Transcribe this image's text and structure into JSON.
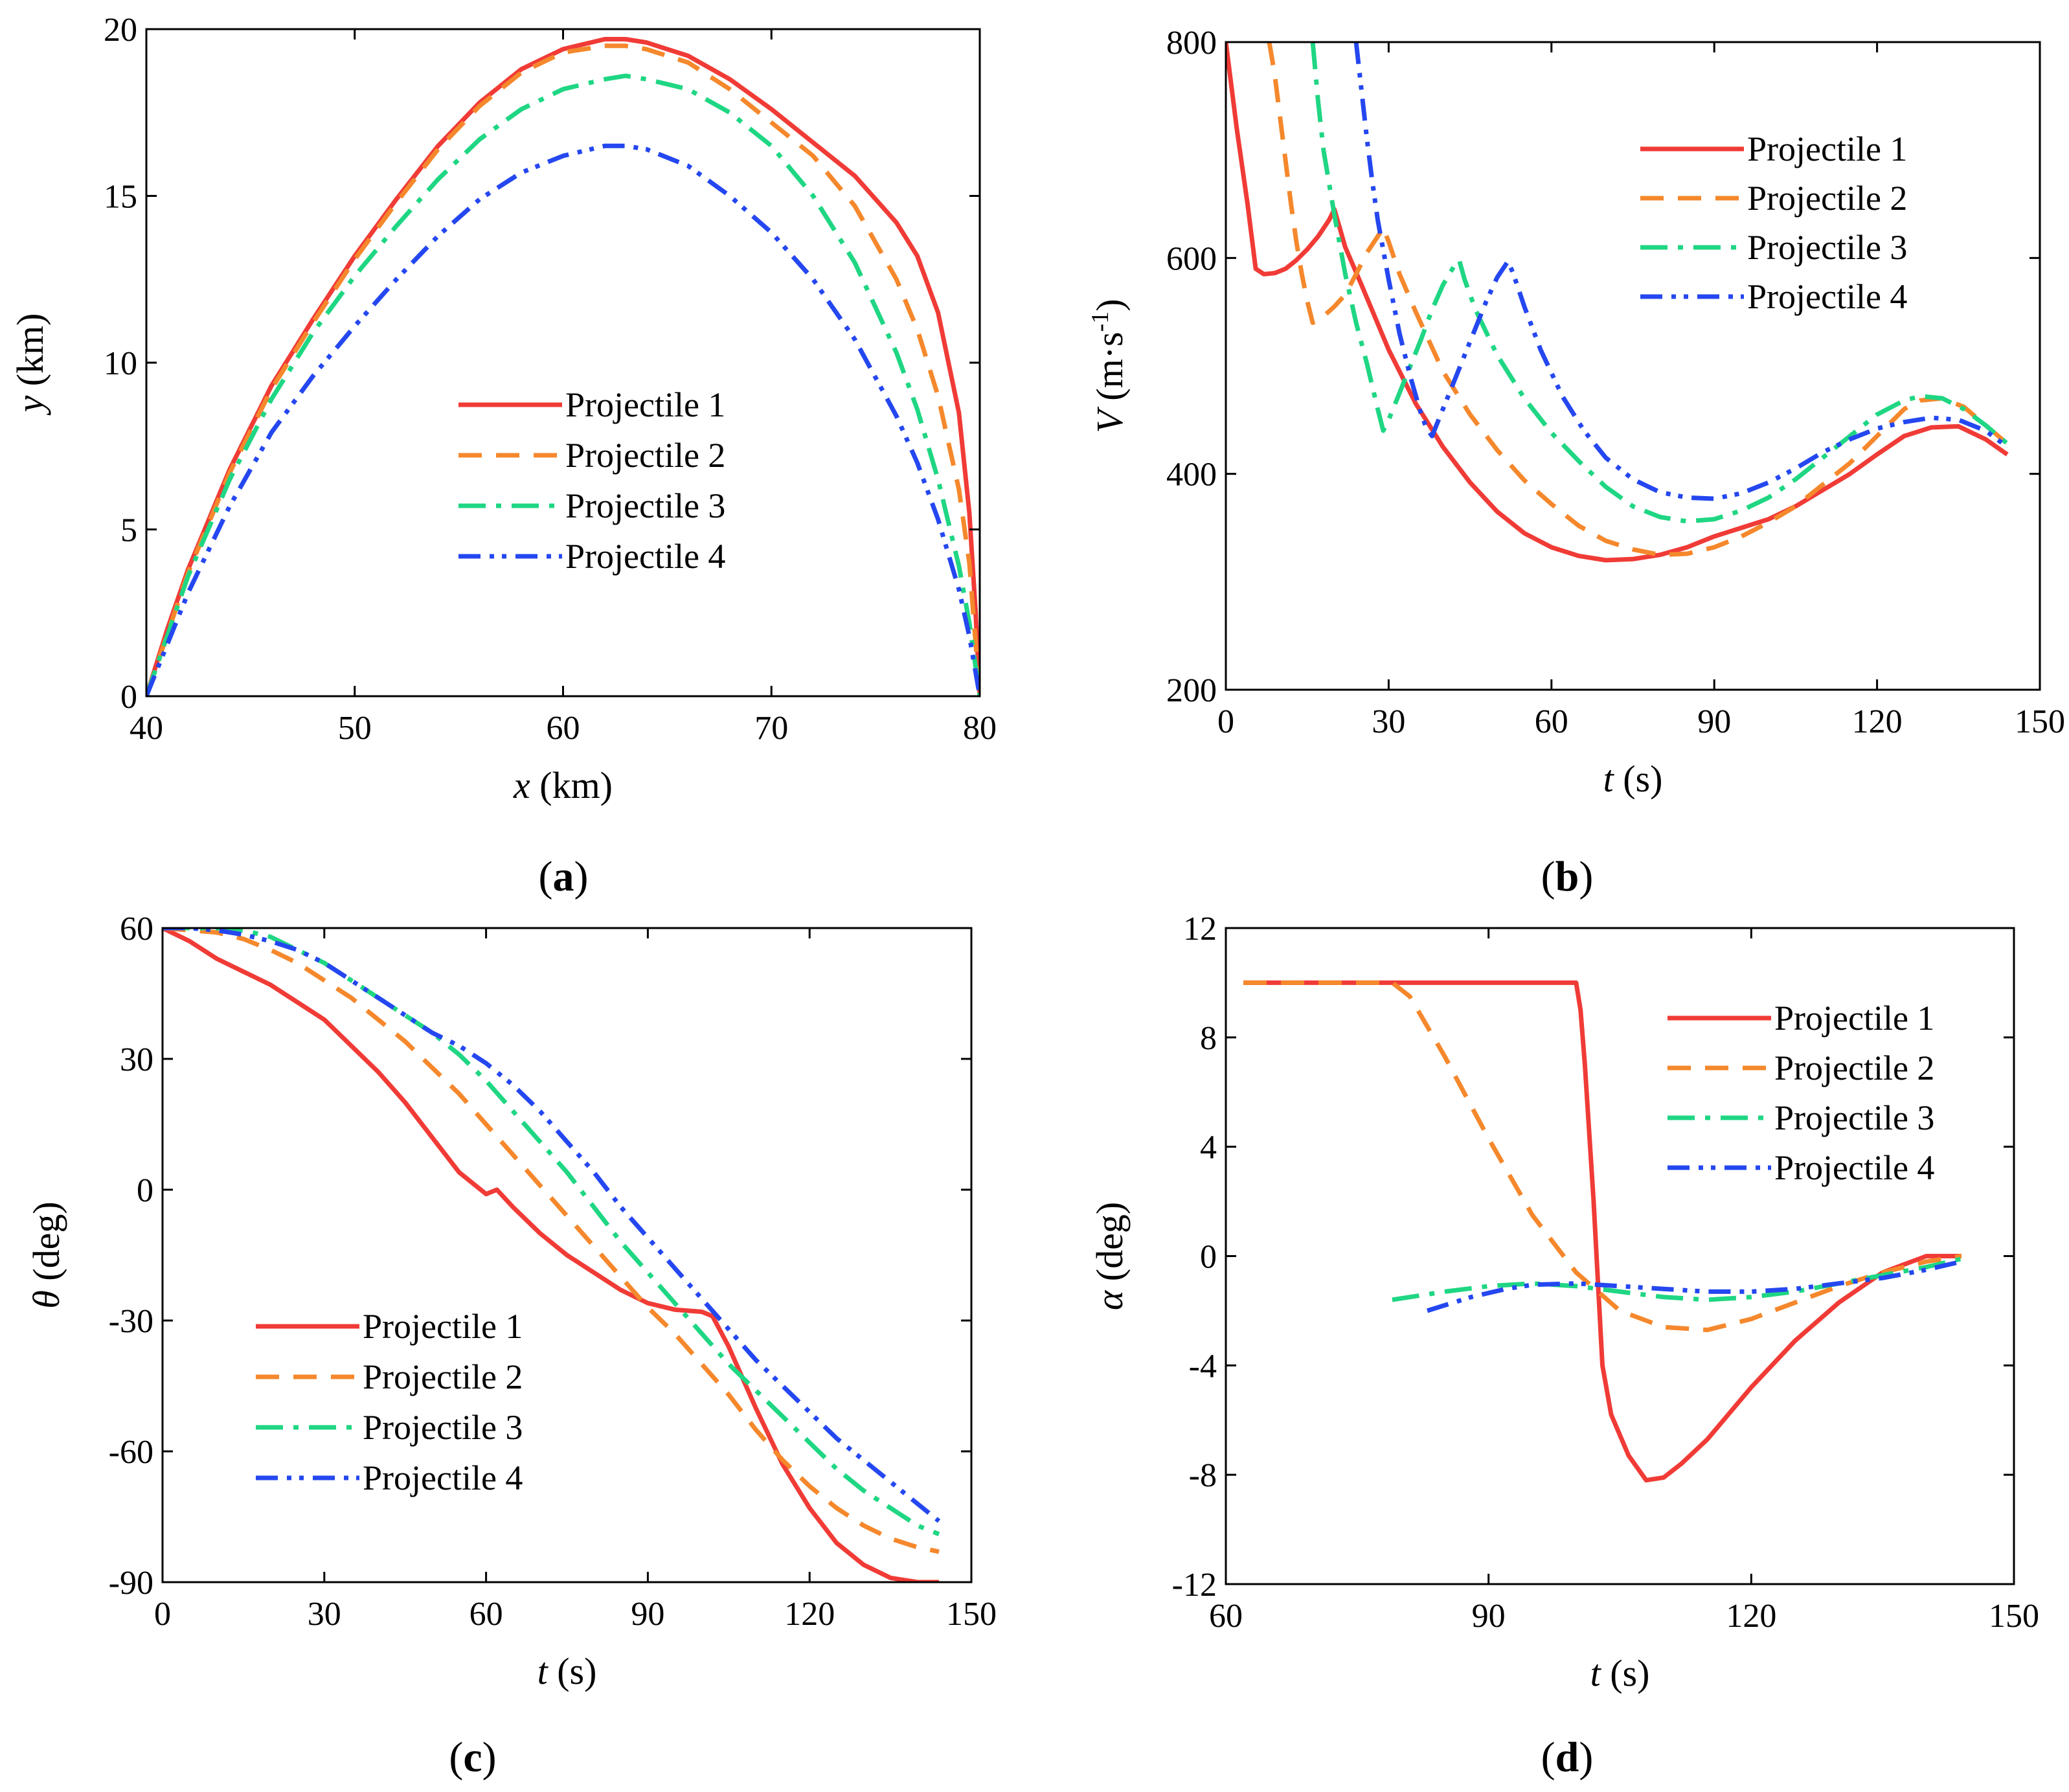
{
  "chart_data": [
    {
      "panel": "a",
      "panel_label": "(a)",
      "panel_letter": "a",
      "type": "line",
      "xlabel": "x (km)",
      "xlabel_var": "x",
      "xlabel_unit": " (km)",
      "ylabel": "y (km)",
      "ylabel_var": "y",
      "ylabel_unit": " (km)",
      "xlim": [
        40,
        80
      ],
      "ylim": [
        0,
        20
      ],
      "xticks": [
        40,
        50,
        60,
        70,
        80
      ],
      "yticks": [
        0,
        5,
        10,
        15,
        20
      ],
      "legend_position": "center",
      "series": [
        {
          "name": "Projectile 1",
          "x": [
            40,
            41,
            42,
            44,
            46,
            48,
            50,
            52,
            54,
            56,
            58,
            60,
            62,
            63,
            64,
            66,
            68,
            70,
            72,
            74,
            76,
            77,
            78,
            79,
            79.5,
            79.8,
            80
          ],
          "y": [
            0,
            2,
            3.8,
            6.8,
            9.3,
            11.3,
            13.2,
            14.9,
            16.5,
            17.8,
            18.8,
            19.4,
            19.7,
            19.7,
            19.6,
            19.2,
            18.5,
            17.6,
            16.6,
            15.6,
            14.2,
            13.2,
            11.5,
            8.5,
            5.5,
            2.5,
            0
          ]
        },
        {
          "name": "Projectile 2",
          "x": [
            40,
            42,
            44,
            46,
            48,
            50,
            52,
            54,
            56,
            58,
            60,
            62,
            63,
            64,
            66,
            68,
            70,
            72,
            74,
            76,
            77,
            78,
            79,
            79.5,
            80
          ],
          "y": [
            0,
            3.7,
            6.7,
            9.2,
            11.2,
            13.1,
            14.8,
            16.4,
            17.7,
            18.7,
            19.3,
            19.5,
            19.5,
            19.4,
            19.0,
            18.2,
            17.2,
            16.2,
            14.7,
            12.5,
            11,
            9,
            6.2,
            4,
            0
          ]
        },
        {
          "name": "Projectile 3",
          "x": [
            40,
            42,
            44,
            46,
            48,
            50,
            52,
            54,
            56,
            58,
            60,
            62,
            63,
            64,
            66,
            68,
            70,
            72,
            74,
            76,
            77,
            78,
            79,
            79.5,
            80
          ],
          "y": [
            0,
            3.6,
            6.5,
            8.9,
            10.9,
            12.6,
            14.1,
            15.5,
            16.7,
            17.6,
            18.2,
            18.5,
            18.6,
            18.5,
            18.2,
            17.5,
            16.5,
            15,
            13,
            10.3,
            8.6,
            6.5,
            3.9,
            2.2,
            0
          ]
        },
        {
          "name": "Projectile 4",
          "x": [
            40,
            42,
            44,
            46,
            48,
            50,
            52,
            54,
            56,
            58,
            60,
            62,
            63,
            64,
            66,
            68,
            70,
            72,
            74,
            76,
            77,
            78,
            79,
            79.5,
            80
          ],
          "y": [
            0,
            3.1,
            5.7,
            7.9,
            9.6,
            11.1,
            12.5,
            13.8,
            14.9,
            15.7,
            16.2,
            16.5,
            16.5,
            16.4,
            15.9,
            15.0,
            13.9,
            12.5,
            10.7,
            8.4,
            7,
            5.3,
            3.2,
            1.8,
            0
          ]
        }
      ]
    },
    {
      "panel": "b",
      "panel_label": "(b)",
      "panel_letter": "b",
      "type": "line",
      "xlabel": "t (s)",
      "xlabel_var": "t",
      "xlabel_unit": " (s)",
      "ylabel": "V (m·s-1)",
      "ylabel_var": "V",
      "ylabel_unit": " (m·s",
      "ylabel_sup": "-1",
      "ylabel_close": ")",
      "xlim": [
        0,
        150
      ],
      "ylim": [
        200,
        800
      ],
      "xticks": [
        0,
        30,
        60,
        90,
        120,
        150
      ],
      "yticks": [
        200,
        400,
        600,
        800
      ],
      "legend_position": "top-right",
      "series": [
        {
          "name": "Projectile 1",
          "x": [
            0,
            2,
            4,
            5.5,
            7,
            9,
            11,
            13,
            15,
            17,
            19,
            20,
            22,
            25,
            30,
            35,
            40,
            45,
            50,
            55,
            60,
            65,
            70,
            75,
            80,
            85,
            90,
            95,
            100,
            105,
            110,
            115,
            120,
            125,
            130,
            135,
            140,
            144
          ],
          "y": [
            800,
            720,
            650,
            590,
            585,
            586,
            590,
            598,
            608,
            620,
            635,
            645,
            610,
            575,
            515,
            465,
            425,
            392,
            365,
            345,
            332,
            324,
            320,
            321,
            325,
            332,
            342,
            350,
            358,
            370,
            385,
            400,
            418,
            435,
            443,
            444,
            432,
            418
          ]
        },
        {
          "name": "Projectile 2",
          "x": [
            8,
            9,
            10,
            11,
            12,
            13,
            14,
            15,
            16,
            17,
            18,
            20,
            22,
            24,
            26,
            28,
            29,
            30,
            32,
            35,
            40,
            45,
            50,
            55,
            60,
            65,
            70,
            75,
            80,
            85,
            90,
            95,
            100,
            105,
            110,
            115,
            120,
            125,
            128,
            132,
            136,
            140,
            144
          ],
          "y": [
            800,
            770,
            730,
            690,
            650,
            615,
            585,
            560,
            540,
            542,
            546,
            555,
            566,
            585,
            605,
            620,
            628,
            615,
            585,
            550,
            495,
            455,
            422,
            394,
            372,
            352,
            338,
            330,
            325,
            326,
            332,
            342,
            355,
            370,
            390,
            410,
            435,
            460,
            468,
            470,
            462,
            445,
            428
          ]
        },
        {
          "name": "Projectile 3",
          "x": [
            16,
            17,
            18,
            20,
            22,
            24,
            26,
            28,
            29,
            30,
            32,
            34,
            36,
            38,
            40,
            42,
            43,
            44,
            46,
            50,
            55,
            60,
            65,
            70,
            75,
            80,
            85,
            90,
            95,
            100,
            105,
            110,
            115,
            120,
            125,
            128,
            132,
            136,
            140,
            144
          ],
          "y": [
            800,
            745,
            700,
            640,
            585,
            540,
            502,
            460,
            440,
            450,
            475,
            500,
            525,
            552,
            575,
            592,
            598,
            580,
            552,
            510,
            470,
            438,
            412,
            388,
            370,
            360,
            356,
            358,
            366,
            378,
            395,
            415,
            435,
            455,
            468,
            472,
            470,
            460,
            445,
            428
          ]
        },
        {
          "name": "Projectile 4",
          "x": [
            24,
            25,
            26,
            27,
            28,
            30,
            32,
            34,
            36,
            37,
            38,
            40,
            42,
            44,
            46,
            48,
            50,
            52,
            53,
            55,
            58,
            62,
            66,
            70,
            75,
            80,
            85,
            90,
            95,
            100,
            105,
            110,
            115,
            120,
            125,
            130,
            135,
            140,
            144
          ],
          "y": [
            800,
            755,
            710,
            670,
            635,
            580,
            530,
            490,
            455,
            442,
            435,
            460,
            485,
            510,
            535,
            560,
            582,
            597,
            585,
            555,
            515,
            472,
            440,
            415,
            395,
            383,
            378,
            377,
            382,
            392,
            405,
            420,
            432,
            442,
            448,
            452,
            450,
            440,
            425
          ]
        }
      ]
    },
    {
      "panel": "c",
      "panel_label": "(c)",
      "panel_letter": "c",
      "type": "line",
      "xlabel": "t (s)",
      "xlabel_var": "t",
      "xlabel_unit": " (s)",
      "ylabel": "θ (deg)",
      "ylabel_var": "θ",
      "ylabel_unit": " (deg)",
      "xlim": [
        0,
        150
      ],
      "ylim": [
        -90,
        60
      ],
      "xticks": [
        0,
        30,
        60,
        90,
        120,
        150
      ],
      "yticks": [
        -90,
        -60,
        -30,
        0,
        30,
        60
      ],
      "legend_position": "bottom-left",
      "series": [
        {
          "name": "Projectile 1",
          "x": [
            0,
            5,
            10,
            15,
            20,
            25,
            30,
            35,
            40,
            45,
            50,
            55,
            60,
            62,
            65,
            70,
            75,
            80,
            85,
            90,
            95,
            100,
            102,
            105,
            110,
            115,
            120,
            125,
            130,
            135,
            140,
            144
          ],
          "y": [
            60,
            57,
            53,
            50,
            47,
            43,
            39,
            33,
            27,
            20,
            12,
            4,
            -1,
            0,
            -4,
            -10,
            -15,
            -19,
            -23,
            -26,
            -27.5,
            -28,
            -29,
            -36,
            -50,
            -63,
            -73,
            -81,
            -86,
            -89,
            -90,
            -90
          ]
        },
        {
          "name": "Projectile 2",
          "x": [
            0,
            5,
            10,
            15,
            20,
            25,
            30,
            35,
            40,
            45,
            50,
            55,
            60,
            65,
            70,
            75,
            80,
            85,
            90,
            95,
            100,
            105,
            110,
            115,
            120,
            125,
            130,
            135,
            140,
            144
          ],
          "y": [
            60,
            59.5,
            59,
            57.5,
            55,
            52,
            48,
            44,
            39,
            34,
            28,
            22,
            15,
            8,
            1,
            -6,
            -13,
            -20,
            -27,
            -33,
            -40,
            -47,
            -55,
            -62,
            -68,
            -73,
            -77,
            -80,
            -82,
            -83
          ]
        },
        {
          "name": "Projectile 3",
          "x": [
            0,
            5,
            10,
            15,
            20,
            25,
            30,
            35,
            40,
            45,
            50,
            55,
            60,
            65,
            70,
            75,
            80,
            85,
            90,
            95,
            100,
            105,
            110,
            115,
            120,
            125,
            130,
            135,
            140,
            144
          ],
          "y": [
            60,
            60,
            60,
            59.5,
            58,
            55,
            52,
            48,
            44,
            40,
            36,
            31,
            25,
            18,
            11,
            4,
            -4,
            -12,
            -19,
            -26,
            -33,
            -40,
            -46,
            -52,
            -58,
            -64,
            -69,
            -73,
            -77,
            -79
          ]
        },
        {
          "name": "Projectile 4",
          "x": [
            0,
            5,
            10,
            15,
            20,
            25,
            30,
            35,
            40,
            45,
            50,
            55,
            60,
            65,
            70,
            75,
            80,
            85,
            90,
            95,
            100,
            105,
            110,
            115,
            120,
            125,
            130,
            135,
            140,
            144
          ],
          "y": [
            60,
            60,
            59.5,
            58.5,
            57,
            55,
            52,
            48,
            44,
            40,
            36,
            33,
            29,
            24,
            18,
            11,
            4,
            -4,
            -11,
            -18,
            -25,
            -32,
            -39,
            -45,
            -51,
            -57,
            -62,
            -67,
            -72,
            -76
          ]
        }
      ]
    },
    {
      "panel": "d",
      "panel_label": "(d)",
      "panel_letter": "d",
      "type": "line",
      "xlabel": "t (s)",
      "xlabel_var": "t",
      "xlabel_unit": " (s)",
      "ylabel": "α (deg)",
      "ylabel_var": "α",
      "ylabel_unit": " (deg)",
      "xlim": [
        60,
        150
      ],
      "ylim": [
        -12,
        12
      ],
      "xticks": [
        60,
        90,
        120,
        150
      ],
      "yticks": [
        -12,
        -8,
        -4,
        0,
        4,
        8,
        12
      ],
      "legend_position": "top-right",
      "series": [
        {
          "name": "Projectile 1",
          "x": [
            62,
            100,
            100.5,
            101,
            102,
            103,
            104,
            106,
            108,
            110,
            112,
            115,
            120,
            125,
            130,
            135,
            140,
            144
          ],
          "y": [
            10,
            10,
            9,
            7,
            2,
            -4,
            -5.8,
            -7.3,
            -8.2,
            -8.1,
            -7.6,
            -6.7,
            -4.8,
            -3.1,
            -1.7,
            -0.6,
            0,
            0
          ]
        },
        {
          "name": "Projectile 2",
          "x": [
            62,
            79,
            81,
            85,
            90,
            95,
            100,
            105,
            110,
            115,
            120,
            125,
            130,
            135,
            140,
            144
          ],
          "y": [
            10,
            10,
            9.5,
            7.3,
            4.3,
            1.5,
            -0.6,
            -2,
            -2.6,
            -2.7,
            -2.3,
            -1.7,
            -1.1,
            -0.6,
            -0.2,
            0
          ]
        },
        {
          "name": "Projectile 3",
          "x": [
            79,
            85,
            90,
            95,
            100,
            105,
            110,
            115,
            120,
            125,
            130,
            135,
            140,
            144
          ],
          "y": [
            -1.6,
            -1.3,
            -1.1,
            -1,
            -1.1,
            -1.3,
            -1.5,
            -1.6,
            -1.5,
            -1.3,
            -1,
            -0.7,
            -0.4,
            -0.1
          ]
        },
        {
          "name": "Projectile 4",
          "x": [
            83,
            88,
            92,
            95,
            100,
            105,
            110,
            115,
            120,
            125,
            130,
            135,
            140,
            144
          ],
          "y": [
            -2,
            -1.5,
            -1.2,
            -1.05,
            -1,
            -1.1,
            -1.2,
            -1.3,
            -1.3,
            -1.2,
            -1,
            -0.8,
            -0.5,
            -0.2
          ]
        }
      ]
    }
  ],
  "series_colors": [
    "#f03b36",
    "#f5882c",
    "#1fd683",
    "#2447f0"
  ]
}
